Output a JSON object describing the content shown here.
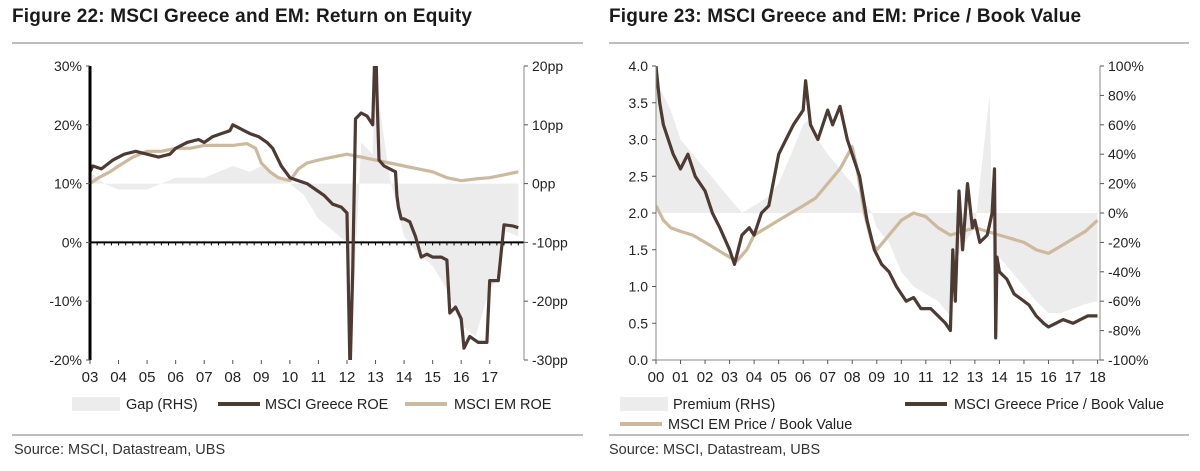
{
  "chart_data": [
    {
      "type": "line",
      "title": "Figure 22: MSCI Greece and EM: Return on Equity",
      "source": "Source:  MSCI, Datastream, UBS",
      "x_tick_labels": [
        "03",
        "04",
        "05",
        "06",
        "07",
        "08",
        "09",
        "10",
        "11",
        "12",
        "13",
        "14",
        "15",
        "16",
        "17"
      ],
      "xlim": [
        2003.0,
        2018.2
      ],
      "left_axis": {
        "ylim": [
          -20,
          30
        ],
        "tick_values": [
          -20,
          -10,
          0,
          10,
          20,
          30
        ],
        "tick_labels": [
          "-20%",
          "-10%",
          "0%",
          "10%",
          "20%",
          "30%"
        ]
      },
      "right_axis": {
        "ylim": [
          -30,
          20
        ],
        "tick_values": [
          -30,
          -20,
          -10,
          0,
          10,
          20
        ],
        "tick_labels": [
          "-30pp",
          "-20pp",
          "-10pp",
          "0pp",
          "10pp",
          "20pp"
        ]
      },
      "legend": [
        "Gap (RHS)",
        "MSCI Greece ROE",
        "MSCI EM ROE"
      ],
      "colors": {
        "gap": "#ececec",
        "greece": "#4d3b33",
        "em": "#cdb99b"
      },
      "series": [
        {
          "name": "MSCI Greece ROE",
          "axis": "left",
          "x": [
            2003.0,
            2003.1,
            2003.4,
            2003.8,
            2004.2,
            2004.6,
            2005.0,
            2005.4,
            2005.8,
            2006.0,
            2006.4,
            2006.8,
            2007.0,
            2007.3,
            2007.6,
            2007.9,
            2008.0,
            2008.2,
            2008.4,
            2008.6,
            2008.9,
            2009.2,
            2009.4,
            2009.7,
            2010.0,
            2010.3,
            2010.6,
            2010.9,
            2011.2,
            2011.5,
            2011.8,
            2012.0,
            2012.1,
            2012.12,
            2012.2,
            2012.3,
            2012.5,
            2012.7,
            2012.9,
            2013.0,
            2013.05,
            2013.12,
            2013.3,
            2013.5,
            2013.7,
            2013.75,
            2013.8,
            2013.9,
            2014.0,
            2014.2,
            2014.4,
            2014.6,
            2014.8,
            2015.0,
            2015.3,
            2015.5,
            2015.6,
            2015.8,
            2016.0,
            2016.1,
            2016.3,
            2016.6,
            2016.9,
            2017.0,
            2017.1,
            2017.3,
            2017.5,
            2017.8,
            2018.0
          ],
          "y": [
            12,
            13,
            12.5,
            14,
            15,
            15.5,
            15,
            14.5,
            15,
            16,
            17,
            17.5,
            17,
            18,
            18.5,
            19,
            20,
            19.5,
            19,
            18.5,
            18,
            17,
            16,
            13,
            11,
            10.5,
            10,
            9,
            8,
            6.5,
            6,
            5,
            -20,
            -20,
            -5,
            21,
            22,
            21.5,
            20,
            36,
            25,
            14,
            13,
            12.5,
            12,
            8,
            6,
            4,
            4,
            3.5,
            1,
            -2.5,
            -2,
            -2.5,
            -2.5,
            -3,
            -12,
            -11,
            -13,
            -18,
            -16,
            -17,
            -17,
            -6.5,
            -6.5,
            -6.5,
            3,
            2.8,
            2.5
          ]
        },
        {
          "name": "MSCI EM ROE",
          "axis": "left",
          "x": [
            2003.0,
            2003.3,
            2003.7,
            2004.0,
            2004.5,
            2005.0,
            2005.5,
            2006.0,
            2006.5,
            2007.0,
            2007.5,
            2008.0,
            2008.5,
            2008.8,
            2009.0,
            2009.3,
            2009.6,
            2010.0,
            2010.3,
            2010.6,
            2011.0,
            2011.5,
            2012.0,
            2012.5,
            2013.0,
            2013.5,
            2014.0,
            2014.5,
            2015.0,
            2015.5,
            2016.0,
            2016.5,
            2017.0,
            2017.5,
            2018.0
          ],
          "y": [
            10,
            11,
            12,
            13,
            14.5,
            15.5,
            15.5,
            16,
            16,
            16.5,
            16.5,
            16.5,
            16.8,
            16,
            13.5,
            12,
            11,
            10.5,
            12.5,
            13.5,
            14,
            14.5,
            15,
            14.5,
            14,
            13.5,
            13,
            12.5,
            12,
            11,
            10.5,
            10.8,
            11,
            11.5,
            12
          ]
        },
        {
          "name": "Gap (RHS)",
          "axis": "right",
          "style": "area",
          "x": [
            2003.0,
            2003.5,
            2004.0,
            2005.0,
            2006.0,
            2007.0,
            2008.0,
            2008.6,
            2009.0,
            2009.6,
            2010.0,
            2010.5,
            2011.0,
            2011.5,
            2012.0,
            2012.2,
            2012.5,
            2012.9,
            2013.0,
            2013.2,
            2013.5,
            2014.0,
            2014.5,
            2015.0,
            2015.5,
            2016.0,
            2016.5,
            2017.0,
            2017.3,
            2017.5,
            2018.0
          ],
          "y": [
            2,
            0,
            -1,
            -1,
            1,
            1,
            3,
            2,
            3,
            1,
            0,
            -2,
            -6,
            -8,
            -10,
            -23,
            7,
            5,
            21,
            11,
            1,
            -9,
            -12,
            -14,
            -18,
            -24,
            -26,
            -18,
            -16,
            -8,
            -9
          ]
        }
      ]
    },
    {
      "type": "line",
      "title": "Figure 23: MSCI Greece and EM: Price / Book Value",
      "source": "Source:  MSCI, Datastream, UBS",
      "x_tick_labels": [
        "00",
        "01",
        "02",
        "03",
        "04",
        "05",
        "06",
        "07",
        "08",
        "09",
        "10",
        "11",
        "12",
        "13",
        "14",
        "15",
        "16",
        "17",
        "18"
      ],
      "xlim": [
        2000.0,
        2018.1
      ],
      "left_axis": {
        "ylim": [
          0,
          4
        ],
        "tick_values": [
          0,
          0.5,
          1,
          1.5,
          2,
          2.5,
          3,
          3.5,
          4
        ],
        "tick_labels": [
          "0.0",
          "0.5",
          "1.0",
          "1.5",
          "2.0",
          "2.5",
          "3.0",
          "3.5",
          "4.0"
        ]
      },
      "right_axis": {
        "ylim": [
          -100,
          100
        ],
        "tick_values": [
          -100,
          -80,
          -60,
          -40,
          -20,
          0,
          20,
          40,
          60,
          80,
          100
        ],
        "tick_labels": [
          "-100%",
          "-80%",
          "-60%",
          "-40%",
          "-20%",
          "0%",
          "20%",
          "40%",
          "60%",
          "80%",
          "100%"
        ]
      },
      "legend": [
        "Premium (RHS)",
        "MSCI Greece Price / Book Value",
        "MSCI EM Price / Book Value"
      ],
      "colors": {
        "gap": "#ececec",
        "greece": "#4d3b33",
        "em": "#cdb99b"
      },
      "series": [
        {
          "name": "MSCI Greece Price / Book Value",
          "axis": "left",
          "x": [
            2000.0,
            2000.15,
            2000.3,
            2000.5,
            2000.7,
            2001.0,
            2001.3,
            2001.6,
            2002.0,
            2002.3,
            2002.6,
            2003.0,
            2003.2,
            2003.5,
            2003.8,
            2004.0,
            2004.3,
            2004.6,
            2005.0,
            2005.3,
            2005.6,
            2006.0,
            2006.1,
            2006.3,
            2006.6,
            2007.0,
            2007.2,
            2007.5,
            2007.8,
            2008.0,
            2008.3,
            2008.6,
            2008.9,
            2009.2,
            2009.5,
            2009.8,
            2010.2,
            2010.5,
            2010.8,
            2011.2,
            2011.5,
            2011.8,
            2012.0,
            2012.1,
            2012.2,
            2012.35,
            2012.5,
            2012.7,
            2012.9,
            2013.0,
            2013.2,
            2013.5,
            2013.7,
            2013.8,
            2013.85,
            2013.9,
            2014.0,
            2014.3,
            2014.6,
            2015.0,
            2015.2,
            2015.5,
            2015.8,
            2016.0,
            2016.3,
            2016.6,
            2017.0,
            2017.3,
            2017.6,
            2018.0
          ],
          "y": [
            4.0,
            3.5,
            3.2,
            3.0,
            2.8,
            2.6,
            2.8,
            2.5,
            2.3,
            2.0,
            1.8,
            1.5,
            1.3,
            1.7,
            1.8,
            1.7,
            2.0,
            2.1,
            2.8,
            3.0,
            3.2,
            3.4,
            3.8,
            3.2,
            3.0,
            3.4,
            3.2,
            3.45,
            3.0,
            2.8,
            2.5,
            1.9,
            1.5,
            1.3,
            1.2,
            1.0,
            0.8,
            0.85,
            0.7,
            0.7,
            0.6,
            0.5,
            0.4,
            1.5,
            0.8,
            2.3,
            1.5,
            2.4,
            1.8,
            1.9,
            1.6,
            1.7,
            2.0,
            2.6,
            0.3,
            1.4,
            1.2,
            1.1,
            0.9,
            0.8,
            0.75,
            0.6,
            0.5,
            0.45,
            0.5,
            0.55,
            0.5,
            0.55,
            0.6,
            0.6
          ]
        },
        {
          "name": "MSCI EM Price / Book Value",
          "axis": "left",
          "x": [
            2000.0,
            2000.3,
            2000.6,
            2001.0,
            2001.5,
            2002.0,
            2002.5,
            2003.0,
            2003.3,
            2003.7,
            2004.0,
            2004.5,
            2005.0,
            2005.5,
            2006.0,
            2006.5,
            2007.0,
            2007.5,
            2008.0,
            2008.2,
            2008.5,
            2008.8,
            2009.0,
            2009.5,
            2010.0,
            2010.5,
            2011.0,
            2011.5,
            2012.0,
            2012.5,
            2013.0,
            2013.5,
            2014.0,
            2014.5,
            2015.0,
            2015.5,
            2016.0,
            2016.5,
            2017.0,
            2017.5,
            2018.0
          ],
          "y": [
            2.1,
            1.9,
            1.8,
            1.75,
            1.7,
            1.6,
            1.5,
            1.4,
            1.35,
            1.5,
            1.7,
            1.8,
            1.9,
            2.0,
            2.1,
            2.2,
            2.4,
            2.6,
            2.9,
            2.6,
            2.0,
            1.6,
            1.5,
            1.7,
            1.9,
            2.0,
            1.95,
            1.8,
            1.7,
            1.75,
            1.8,
            1.75,
            1.7,
            1.65,
            1.6,
            1.5,
            1.45,
            1.55,
            1.65,
            1.75,
            1.9
          ]
        },
        {
          "name": "Premium (RHS)",
          "axis": "right",
          "style": "area",
          "x": [
            2000.0,
            2000.3,
            2000.6,
            2001.0,
            2001.5,
            2002.0,
            2002.5,
            2003.0,
            2003.5,
            2004.0,
            2004.5,
            2005.0,
            2005.5,
            2006.0,
            2006.3,
            2006.6,
            2007.0,
            2007.5,
            2008.0,
            2008.4,
            2008.8,
            2009.0,
            2009.5,
            2010.0,
            2010.5,
            2011.0,
            2011.5,
            2012.0,
            2012.3,
            2012.6,
            2013.0,
            2013.4,
            2013.6,
            2013.75,
            2014.0,
            2014.5,
            2015.0,
            2015.5,
            2016.0,
            2016.5,
            2017.0,
            2017.5,
            2018.0
          ],
          "y": [
            90,
            80,
            70,
            50,
            40,
            30,
            20,
            10,
            0,
            5,
            10,
            20,
            40,
            60,
            65,
            50,
            40,
            30,
            20,
            10,
            0,
            -10,
            -20,
            -40,
            -50,
            -55,
            -60,
            -70,
            -30,
            -20,
            -10,
            50,
            80,
            -40,
            -30,
            -40,
            -50,
            -60,
            -68,
            -68,
            -65,
            -62,
            -60
          ]
        }
      ]
    }
  ]
}
